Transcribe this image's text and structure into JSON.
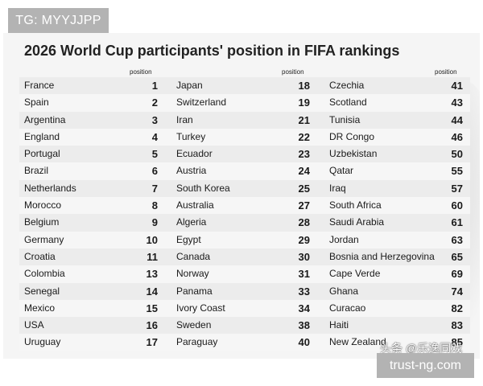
{
  "watermark_top": "TG: MYYJJPP",
  "watermark_bottom": "trust-ng.com",
  "watermark_chinese": "头条 @乐逸同戏",
  "title": "2026 World Cup participants' position in FIFA rankings",
  "position_header": "position",
  "columns": [
    {
      "rows": [
        {
          "name": "France",
          "position": "1"
        },
        {
          "name": "Spain",
          "position": "2"
        },
        {
          "name": "Argentina",
          "position": "3"
        },
        {
          "name": "England",
          "position": "4"
        },
        {
          "name": "Portugal",
          "position": "5"
        },
        {
          "name": "Brazil",
          "position": "6"
        },
        {
          "name": "Netherlands",
          "position": "7"
        },
        {
          "name": "Morocco",
          "position": "8"
        },
        {
          "name": "Belgium",
          "position": "9"
        },
        {
          "name": "Germany",
          "position": "10"
        },
        {
          "name": "Croatia",
          "position": "11"
        },
        {
          "name": "Colombia",
          "position": "13"
        },
        {
          "name": "Senegal",
          "position": "14"
        },
        {
          "name": "Mexico",
          "position": "15"
        },
        {
          "name": "USA",
          "position": "16"
        },
        {
          "name": "Uruguay",
          "position": "17"
        }
      ]
    },
    {
      "rows": [
        {
          "name": "Japan",
          "position": "18"
        },
        {
          "name": "Switzerland",
          "position": "19"
        },
        {
          "name": "Iran",
          "position": "21"
        },
        {
          "name": "Turkey",
          "position": "22"
        },
        {
          "name": "Ecuador",
          "position": "23"
        },
        {
          "name": "Austria",
          "position": "24"
        },
        {
          "name": "South Korea",
          "position": "25"
        },
        {
          "name": "Australia",
          "position": "27"
        },
        {
          "name": "Algeria",
          "position": "28"
        },
        {
          "name": "Egypt",
          "position": "29"
        },
        {
          "name": "Canada",
          "position": "30"
        },
        {
          "name": "Norway",
          "position": "31"
        },
        {
          "name": "Panama",
          "position": "33"
        },
        {
          "name": "Ivory Coast",
          "position": "34"
        },
        {
          "name": "Sweden",
          "position": "38"
        },
        {
          "name": "Paraguay",
          "position": "40"
        }
      ]
    },
    {
      "rows": [
        {
          "name": "Czechia",
          "position": "41"
        },
        {
          "name": "Scotland",
          "position": "43"
        },
        {
          "name": "Tunisia",
          "position": "44"
        },
        {
          "name": "DR Congo",
          "position": "46"
        },
        {
          "name": "Uzbekistan",
          "position": "50"
        },
        {
          "name": "Qatar",
          "position": "55"
        },
        {
          "name": "Iraq",
          "position": "57"
        },
        {
          "name": "South Africa",
          "position": "60"
        },
        {
          "name": "Saudi Arabia",
          "position": "61"
        },
        {
          "name": "Jordan",
          "position": "63"
        },
        {
          "name": "Bosnia and Herzegovina",
          "position": "65"
        },
        {
          "name": "Cape Verde",
          "position": "69"
        },
        {
          "name": "Ghana",
          "position": "74"
        },
        {
          "name": "Curacao",
          "position": "82"
        },
        {
          "name": "Haiti",
          "position": "83"
        },
        {
          "name": "New Zealand",
          "position": "85"
        }
      ]
    }
  ]
}
